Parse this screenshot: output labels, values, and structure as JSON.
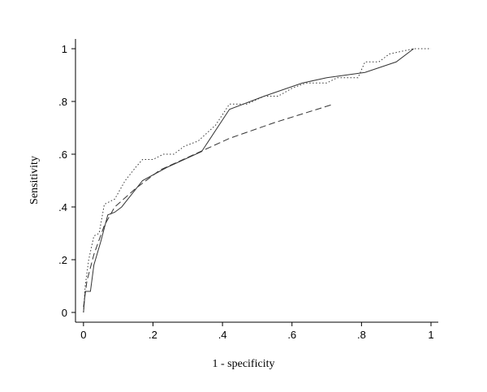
{
  "chart_data": {
    "type": "line",
    "xlabel": "1 - specificity",
    "ylabel": "Sensitivity",
    "xlim": [
      -0.023,
      1.021
    ],
    "ylim": [
      -0.037,
      1.037
    ],
    "xticks": [
      0,
      {
        "value": 0.2,
        "label": ".2"
      },
      {
        "value": 0.4,
        "label": ".4"
      },
      {
        "value": 0.6,
        "label": ".6"
      },
      {
        "value": 0.8,
        "label": ".8"
      },
      1
    ],
    "yticks": [
      0,
      {
        "value": 0.2,
        "label": ".2"
      },
      {
        "value": 0.4,
        "label": ".4"
      },
      {
        "value": 0.6,
        "label": ".6"
      },
      {
        "value": 0.8,
        "label": ".8"
      },
      1
    ],
    "series": [
      {
        "color": "#333333",
        "line_style": "solid",
        "x": [
          0,
          0.005,
          0.02,
          0.03,
          0.05,
          0.07,
          0.09,
          0.11,
          0.17,
          0.24,
          0.34,
          0.42,
          0.52,
          0.63,
          0.7,
          0.81,
          0.9,
          0.95
        ],
        "values": [
          0,
          0.08,
          0.08,
          0.18,
          0.27,
          0.37,
          0.38,
          0.4,
          0.5,
          0.55,
          0.61,
          0.77,
          0.82,
          0.87,
          0.89,
          0.91,
          0.95,
          1.0
        ]
      },
      {
        "color": "#333333",
        "line_style": "dotted",
        "x": [
          0,
          0.005,
          0.015,
          0.03,
          0.045,
          0.06,
          0.09,
          0.12,
          0.15,
          0.17,
          0.2,
          0.23,
          0.26,
          0.29,
          0.33,
          0.38,
          0.42,
          0.47,
          0.52,
          0.56,
          0.6,
          0.64,
          0.7,
          0.73,
          0.79,
          0.81,
          0.85,
          0.88,
          0.95,
          1.0
        ],
        "values": [
          0,
          0.1,
          0.2,
          0.29,
          0.3,
          0.41,
          0.43,
          0.5,
          0.55,
          0.58,
          0.58,
          0.6,
          0.6,
          0.63,
          0.65,
          0.71,
          0.79,
          0.79,
          0.82,
          0.82,
          0.85,
          0.87,
          0.87,
          0.89,
          0.89,
          0.95,
          0.95,
          0.98,
          1.0,
          1.0
        ]
      },
      {
        "color": "#333333",
        "line_style": "dashed",
        "x": [
          0,
          0.01,
          0.03,
          0.06,
          0.09,
          0.15,
          0.22,
          0.32,
          0.42,
          0.55,
          0.72
        ],
        "values": [
          0.02,
          0.12,
          0.22,
          0.33,
          0.4,
          0.47,
          0.54,
          0.6,
          0.66,
          0.72,
          0.79
        ]
      }
    ]
  }
}
